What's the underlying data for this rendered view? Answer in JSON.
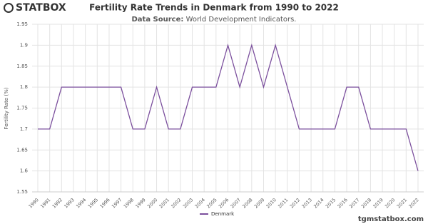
{
  "logo": "STATBOX",
  "footer": "tgmstatbox.com",
  "chart_data": {
    "type": "line",
    "title": "Fertility Rate Trends in Denmark from 1990 to 2022",
    "subtitle_label": "Data Source:",
    "subtitle": "World Development Indicators.",
    "y_label": "Fertility Rate (%)",
    "categories": [
      "1990",
      "1991",
      "1992",
      "1993",
      "1994",
      "1995",
      "1996",
      "1997",
      "1998",
      "1999",
      "2000",
      "2001",
      "2002",
      "2003",
      "2004",
      "2005",
      "2006",
      "2007",
      "2008",
      "2009",
      "2010",
      "2011",
      "2012",
      "2013",
      "2014",
      "2015",
      "2016",
      "2017",
      "2018",
      "2019",
      "2020",
      "2021",
      "2022"
    ],
    "series": [
      {
        "name": "Denmark",
        "color": "#7b4f9d",
        "values": [
          1.7,
          1.7,
          1.8,
          1.8,
          1.8,
          1.8,
          1.8,
          1.8,
          1.7,
          1.7,
          1.8,
          1.7,
          1.7,
          1.8,
          1.8,
          1.8,
          1.9,
          1.8,
          1.9,
          1.8,
          1.9,
          1.8,
          1.7,
          1.7,
          1.7,
          1.7,
          1.8,
          1.8,
          1.7,
          1.7,
          1.7,
          1.7,
          1.6
        ]
      }
    ],
    "ylim": [
      1.55,
      1.95
    ],
    "yticks": [
      1.55,
      1.6,
      1.65,
      1.7,
      1.75,
      1.8,
      1.85,
      1.9,
      1.95
    ],
    "grid": true,
    "legend": "bottom"
  }
}
